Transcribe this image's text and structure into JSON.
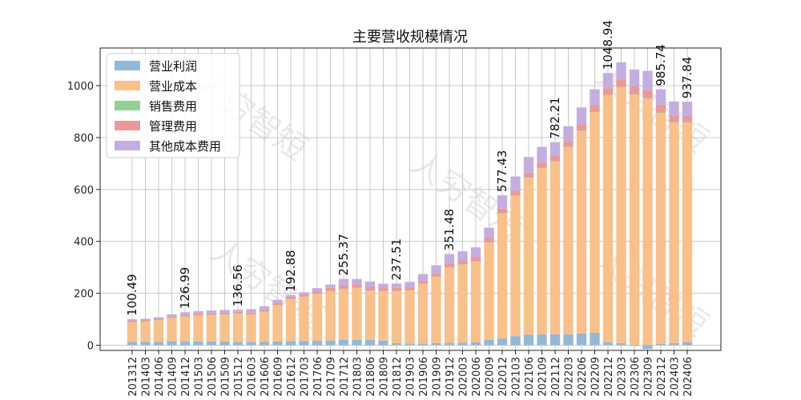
{
  "chart_data": {
    "type": "bar",
    "stacked": true,
    "title": "主要营收规模情况",
    "xlabel": "",
    "ylabel": "",
    "ylim": [
      -20,
      1145
    ],
    "yticks": [
      0,
      200,
      400,
      600,
      800,
      1000
    ],
    "grid": true,
    "legend_position": "top-left",
    "categories": [
      "201312",
      "201403",
      "201406",
      "201409",
      "201412",
      "201503",
      "201506",
      "201509",
      "201512",
      "201603",
      "201606",
      "201609",
      "201612",
      "201703",
      "201706",
      "201709",
      "201712",
      "201803",
      "201806",
      "201809",
      "201812",
      "201903",
      "201906",
      "201909",
      "201912",
      "202003",
      "202006",
      "202009",
      "202012",
      "202103",
      "202106",
      "202109",
      "202112",
      "202203",
      "202206",
      "202209",
      "202212",
      "202303",
      "202306",
      "202309",
      "202312",
      "202403",
      "202406"
    ],
    "series": [
      {
        "name": "营业利润",
        "color": "#93b8d6",
        "values": [
          13,
          13,
          13,
          15,
          15,
          14,
          14,
          14,
          13,
          13,
          13,
          14,
          15,
          16,
          17,
          18,
          20,
          20,
          20,
          18,
          8,
          6,
          6,
          8,
          9,
          10,
          12,
          20,
          26,
          35,
          40,
          42,
          42,
          42,
          45,
          48,
          12,
          8,
          -3,
          -15,
          5,
          8,
          12
        ]
      },
      {
        "name": "营业成本",
        "color": "#f8c08b",
        "values": [
          75,
          78,
          82,
          90,
          95,
          100,
          102,
          103,
          108,
          105,
          115,
          140,
          162,
          170,
          180,
          190,
          195,
          200,
          190,
          190,
          200,
          205,
          230,
          255,
          290,
          300,
          310,
          375,
          480,
          540,
          605,
          640,
          665,
          720,
          780,
          850,
          950,
          985,
          965,
          950,
          890,
          850,
          845
        ]
      },
      {
        "name": "销售费用",
        "color": "#96cf96",
        "values": [
          1,
          1,
          1,
          1,
          1,
          1,
          1,
          1,
          1,
          1,
          1,
          1,
          1,
          1,
          1,
          1,
          1,
          1,
          1,
          1,
          1,
          1,
          1,
          1,
          1,
          2,
          2,
          2,
          2,
          2,
          2,
          2,
          2,
          2,
          2,
          2,
          2,
          2,
          2,
          2,
          2,
          2,
          2
        ]
      },
      {
        "name": "管理费用",
        "color": "#e89a9a",
        "values": [
          5,
          5,
          6,
          6,
          7,
          7,
          7,
          7,
          7,
          8,
          8,
          8,
          9,
          9,
          10,
          12,
          14,
          14,
          14,
          13,
          12,
          12,
          12,
          14,
          15,
          15,
          15,
          16,
          18,
          18,
          18,
          20,
          22,
          22,
          24,
          26,
          26,
          30,
          30,
          30,
          30,
          24,
          24
        ]
      },
      {
        "name": "其他成本费用",
        "color": "#c4aee0",
        "values": [
          6.49,
          5,
          6,
          7,
          8.99,
          9,
          10,
          11,
          7.56,
          12,
          13,
          12,
          5.88,
          8,
          12,
          13,
          25.37,
          20,
          20,
          15,
          16.51,
          20,
          25,
          30,
          36.48,
          35,
          38,
          40,
          51.43,
          55,
          60,
          60,
          51.21,
          58,
          65,
          60,
          58.94,
          65,
          65,
          75,
          58.74,
          55,
          54.84
        ]
      }
    ],
    "annotations": [
      {
        "category": "201312",
        "text": "100.49"
      },
      {
        "category": "201412",
        "text": "126.99"
      },
      {
        "category": "201512",
        "text": "136.56"
      },
      {
        "category": "201612",
        "text": "192.88"
      },
      {
        "category": "201712",
        "text": "255.37"
      },
      {
        "category": "201812",
        "text": "237.51"
      },
      {
        "category": "201912",
        "text": "351.48"
      },
      {
        "category": "202012",
        "text": "577.43"
      },
      {
        "category": "202112",
        "text": "782.21"
      },
      {
        "category": "202212",
        "text": "1048.94"
      },
      {
        "category": "202312",
        "text": "985.74"
      },
      {
        "category": "202406",
        "text": "937.84"
      }
    ],
    "watermark": "人穷智短"
  }
}
